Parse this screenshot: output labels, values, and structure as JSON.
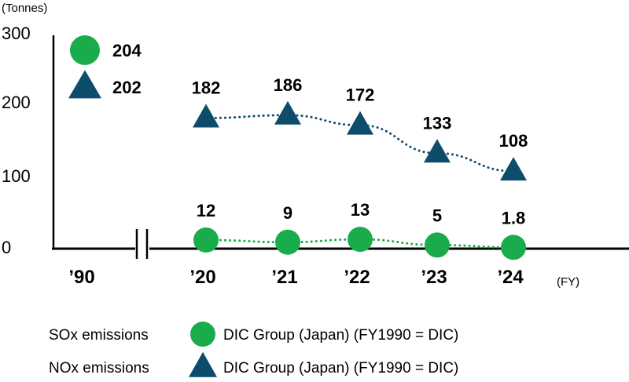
{
  "chart_data": {
    "type": "line",
    "unit_label": "(Tonnes)",
    "x_unit_label": "(FY)",
    "categories": [
      "’90",
      "’20",
      "’21",
      "’22",
      "’23",
      "’24"
    ],
    "y_ticks": [
      "300",
      "200",
      "100",
      "0"
    ],
    "ylim": [
      0,
      300
    ],
    "grid": false,
    "axis_break": "between ’90 and ’20",
    "baseline_1990": [
      {
        "series": "SOx",
        "value": 204,
        "label": "204",
        "marker": "circle"
      },
      {
        "series": "NOx",
        "value": 202,
        "label": "202",
        "marker": "triangle"
      }
    ],
    "series": [
      {
        "marker": "triangle",
        "color": "#0e4c6b",
        "x": [
          "’20",
          "’21",
          "’22",
          "’23",
          "’24"
        ],
        "values": [
          182,
          186,
          172,
          133,
          108
        ],
        "labels": [
          "182",
          "186",
          "172",
          "133",
          "108"
        ]
      },
      {
        "marker": "circle",
        "color": "#1aab4b",
        "x": [
          "’20",
          "’21",
          "’22",
          "’23",
          "’24"
        ],
        "values": [
          12,
          9,
          13,
          5,
          1.8
        ],
        "labels": [
          "12",
          "9",
          "13",
          "5",
          "1.8"
        ]
      }
    ],
    "legend": [
      {
        "label": "SOx emissions",
        "marker": "circle",
        "color": "#1aab4b",
        "text": "DIC Group (Japan) (FY1990 = DIC)"
      },
      {
        "label": "NOx emissions",
        "marker": "triangle",
        "color": "#0e4c6b",
        "text": "DIC Group (Japan) (FY1990 = DIC)"
      }
    ],
    "legend_placement": "bottom"
  }
}
